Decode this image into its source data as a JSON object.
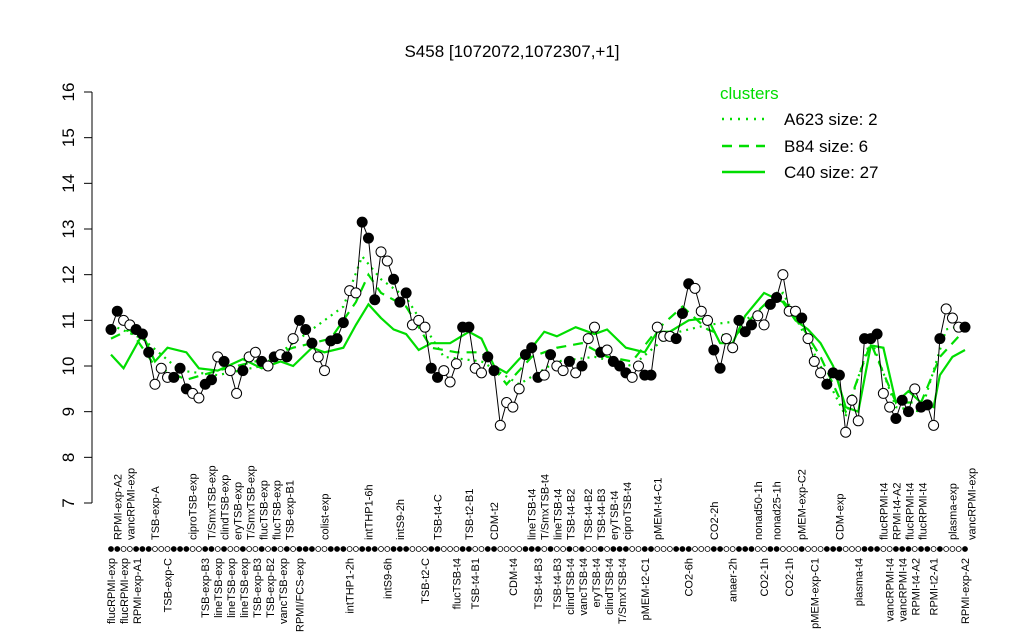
{
  "chart_data": {
    "type": "line",
    "title": "S458 [1072072,1072307,+1]",
    "xlabel": "",
    "ylabel": "",
    "ylim": [
      7,
      16
    ],
    "yticks": [
      7,
      8,
      9,
      10,
      11,
      12,
      13,
      14,
      15,
      16
    ],
    "xlim": [
      1,
      137
    ],
    "grid": false,
    "legend": {
      "title": "clusters",
      "placement": "top-right",
      "color": "#00dd00",
      "entries": [
        {
          "label": "A623 size: 2",
          "style": "dotted"
        },
        {
          "label": "B84 size: 6",
          "style": "dashed"
        },
        {
          "label": "C40 size: 27",
          "style": "solid"
        }
      ]
    },
    "points": {
      "values": [
        10.8,
        11.2,
        11.0,
        10.9,
        10.8,
        10.7,
        10.3,
        9.6,
        9.95,
        9.75,
        9.75,
        9.95,
        9.5,
        9.4,
        9.3,
        9.6,
        9.7,
        10.2,
        10.1,
        9.9,
        9.4,
        9.9,
        10.2,
        10.3,
        10.1,
        10.0,
        10.2,
        10.25,
        10.2,
        10.6,
        11.0,
        10.8,
        10.5,
        10.2,
        9.9,
        10.55,
        10.6,
        10.95,
        11.65,
        11.6,
        13.15,
        12.8,
        11.45,
        12.5,
        12.3,
        11.9,
        11.4,
        11.6,
        10.9,
        11.0,
        10.85,
        9.95,
        9.75,
        9.9,
        9.65,
        10.05,
        10.85,
        10.85,
        9.95,
        9.85,
        10.2,
        9.9,
        8.7,
        9.2,
        9.1,
        9.5,
        10.25,
        10.4,
        9.75,
        9.8,
        10.25,
        10.0,
        9.9,
        10.1,
        9.85,
        10.0,
        10.6,
        10.85,
        10.3,
        10.35,
        10.1,
        10.0,
        9.85,
        9.75,
        10.0,
        9.8,
        9.8,
        10.85,
        10.65,
        10.65,
        10.6,
        11.15,
        11.8,
        11.7,
        11.2,
        11.0,
        10.35,
        9.95,
        10.6,
        10.4,
        11.0,
        10.75,
        10.9,
        11.1,
        10.9,
        11.35,
        11.5,
        12.0,
        11.2,
        11.2,
        11.05,
        10.6,
        10.1,
        9.85,
        9.6,
        9.85,
        9.8,
        8.55,
        9.25,
        8.8,
        10.6,
        10.6,
        10.7,
        9.4,
        9.1,
        8.85,
        9.25,
        9.0,
        9.5,
        9.1,
        9.15,
        8.7,
        10.6,
        11.25,
        11.05,
        10.85,
        10.85
      ],
      "filled": [
        1,
        1,
        0,
        0,
        1,
        1,
        1,
        0,
        0,
        0,
        1,
        1,
        1,
        0,
        0,
        1,
        1,
        0,
        1,
        0,
        0,
        1,
        0,
        0,
        1,
        0,
        1,
        0,
        1,
        0,
        1,
        1,
        1,
        0,
        0,
        1,
        1,
        1,
        0,
        0,
        1,
        1,
        1,
        0,
        0,
        1,
        1,
        1,
        0,
        0,
        0,
        1,
        1,
        0,
        0,
        0,
        1,
        1,
        0,
        0,
        1,
        1,
        0,
        0,
        0,
        0,
        1,
        1,
        1,
        0,
        1,
        0,
        0,
        1,
        0,
        1,
        0,
        0,
        1,
        0,
        1,
        1,
        1,
        0,
        0,
        1,
        1,
        0,
        0,
        0,
        1,
        1,
        1,
        0,
        0,
        0,
        1,
        1,
        0,
        0,
        1,
        1,
        1,
        0,
        0,
        1,
        1,
        0,
        0,
        0,
        1,
        0,
        0,
        0,
        1,
        1,
        1,
        0,
        0,
        0,
        1,
        1,
        1,
        0,
        0,
        1,
        1,
        1,
        0,
        1,
        1,
        0,
        1,
        0,
        0,
        0,
        1
      ]
    },
    "series": [
      {
        "name": "C40 size: 27",
        "style": "solid",
        "x": [
          1,
          3,
          6,
          8,
          10,
          13,
          15,
          18,
          22,
          25,
          28,
          30,
          33,
          35,
          38,
          40,
          42,
          44,
          46,
          48,
          50,
          52,
          55,
          58,
          60,
          62,
          64,
          66,
          68,
          70,
          72,
          75,
          78,
          80,
          83,
          86,
          88,
          90,
          93,
          96,
          98,
          100,
          102,
          105,
          108,
          110,
          112,
          114,
          116,
          118,
          120,
          122,
          124,
          126,
          128,
          130,
          132,
          133,
          135,
          137
        ],
        "y": [
          10.25,
          9.95,
          10.7,
          10.1,
          10.4,
          10.3,
          9.95,
          9.9,
          10.15,
          9.95,
          10.1,
          10.0,
          10.4,
          10.3,
          10.4,
          10.9,
          11.35,
          11.05,
          10.8,
          10.7,
          10.35,
          10.5,
          10.5,
          10.75,
          10.6,
          10.0,
          9.85,
          10.15,
          10.4,
          10.75,
          10.65,
          10.85,
          10.7,
          10.8,
          10.4,
          10.3,
          10.75,
          10.75,
          11.0,
          11.05,
          10.5,
          10.5,
          11.1,
          11.6,
          11.4,
          11.0,
          10.8,
          10.5,
          10.0,
          9.1,
          9.0,
          10.45,
          10.4,
          9.2,
          9.45,
          9.2,
          9.1,
          9.8,
          10.2,
          10.35
        ]
      },
      {
        "name": "B84 size: 6",
        "style": "dashed",
        "x": [
          1,
          4,
          8,
          13,
          18,
          24,
          30,
          36,
          40,
          42,
          44,
          48,
          52,
          56,
          60,
          64,
          68,
          72,
          76,
          80,
          84,
          88,
          92,
          96,
          100,
          104,
          107,
          110,
          114,
          118,
          122,
          126,
          130,
          133,
          137
        ],
        "y": [
          10.6,
          10.8,
          10.0,
          9.7,
          9.9,
          10.1,
          10.4,
          10.6,
          11.4,
          12.0,
          11.6,
          11.3,
          10.4,
          10.3,
          10.3,
          9.6,
          10.2,
          10.4,
          10.5,
          10.2,
          10.1,
          10.8,
          11.3,
          10.8,
          10.6,
          11.2,
          11.6,
          11.1,
          10.2,
          9.0,
          10.5,
          9.2,
          9.2,
          10.2,
          10.8
        ]
      },
      {
        "name": "A623 size: 2",
        "style": "dotted",
        "x": [
          1,
          6,
          12,
          18,
          25,
          32,
          38,
          41,
          44,
          48,
          54,
          60,
          66,
          72,
          78,
          84,
          90,
          96,
          102,
          108,
          114,
          118,
          122,
          126,
          130,
          134,
          137
        ],
        "y": [
          10.9,
          10.6,
          9.9,
          9.8,
          10.0,
          10.7,
          11.3,
          12.4,
          11.9,
          11.5,
          10.2,
          10.1,
          9.6,
          10.1,
          10.2,
          10.0,
          10.7,
          10.9,
          11.0,
          11.6,
          10.0,
          8.9,
          10.6,
          9.1,
          9.0,
          10.8,
          10.9
        ]
      }
    ],
    "xlabels_top": [
      {
        "x": 2,
        "label": "RPMI-exp-A2"
      },
      {
        "x": 3,
        "label": "vancRPMI-exp"
      },
      {
        "x": 8,
        "label": "TSB-exp-A"
      },
      {
        "x": 14,
        "label": "ciproTSB-exp"
      },
      {
        "x": 17,
        "label": "T/SmxTSB-exp"
      },
      {
        "x": 18,
        "label": "clindTSB-exp"
      },
      {
        "x": 20,
        "label": "eryTSB-exp"
      },
      {
        "x": 22,
        "label": "T/SmxTSB-exp"
      },
      {
        "x": 24,
        "label": "flucTSB-exp"
      },
      {
        "x": 26,
        "label": "flucTSB-exp"
      },
      {
        "x": 29,
        "label": "TSB-exp-B1"
      },
      {
        "x": 35,
        "label": "colist-exp"
      },
      {
        "x": 42,
        "label": "intTHP1-6h"
      },
      {
        "x": 47,
        "label": "intS9-2h"
      },
      {
        "x": 53,
        "label": "TSB-t4-C"
      },
      {
        "x": 58,
        "label": "TSB-t2-B1"
      },
      {
        "x": 62,
        "label": "CDM-t2"
      },
      {
        "x": 68,
        "label": "lineTSB-t4"
      },
      {
        "x": 70,
        "label": "T/SmxTSB-t4"
      },
      {
        "x": 72,
        "label": "lineTSB-t4"
      },
      {
        "x": 74,
        "label": "TSB-t4-B2"
      },
      {
        "x": 77,
        "label": "TSB-t4-B2"
      },
      {
        "x": 79,
        "label": "TSB-t4-B3"
      },
      {
        "x": 81,
        "label": "eryTSB-t4"
      },
      {
        "x": 83,
        "label": "ciproTSB-t4"
      },
      {
        "x": 88,
        "label": "pMEM-t4-C1"
      },
      {
        "x": 97,
        "label": "CO2-2h"
      },
      {
        "x": 104,
        "label": "nonad50-1h"
      },
      {
        "x": 107,
        "label": "nonad25-1h"
      },
      {
        "x": 111,
        "label": "pMEM-exp-C2"
      },
      {
        "x": 117,
        "label": "CDM-exp"
      },
      {
        "x": 124,
        "label": "flucRPMI-t4"
      },
      {
        "x": 125,
        "label": "RPMI-t4-A2"
      },
      {
        "x": 128,
        "label": "flucRPMI-t4"
      },
      {
        "x": 130,
        "label": "flucRPMI-t4"
      },
      {
        "x": 135,
        "label": "plasma-exp"
      },
      {
        "x": 138,
        "label": "vancRPMI-exp"
      }
    ],
    "xlabels_bottom": [
      {
        "x": 1,
        "label": "flucRPMI-exp"
      },
      {
        "x": 3,
        "label": "flucRPMI-exp"
      },
      {
        "x": 5,
        "label": "RPMI-exp-A1"
      },
      {
        "x": 10,
        "label": "TSB-exp-C"
      },
      {
        "x": 16,
        "label": "TSB-exp-B3"
      },
      {
        "x": 18,
        "label": "lineTSB-exp"
      },
      {
        "x": 20,
        "label": "lineTSB-exp"
      },
      {
        "x": 21,
        "label": "lineTSB-exp"
      },
      {
        "x": 22,
        "label": "TSB-exp-B3"
      },
      {
        "x": 23,
        "label": "TSB-exp-B2"
      },
      {
        "x": 25,
        "label": "vancTSB-exp"
      },
      {
        "x": 31,
        "label": "RPMI/FCS-exp"
      },
      {
        "x": 39,
        "label": "intTHP1-2h"
      },
      {
        "x": 45,
        "label": "intS9-6h"
      },
      {
        "x": 51,
        "label": "TSB-t2-C"
      },
      {
        "x": 56,
        "label": "flucTSB-t4"
      },
      {
        "x": 59,
        "label": "TSB-t4-B1"
      },
      {
        "x": 65,
        "label": "CDM-t4"
      },
      {
        "x": 69,
        "label": "TSB-t4-B3"
      },
      {
        "x": 72,
        "label": "TSB-t4-B3"
      },
      {
        "x": 74,
        "label": "clindTSB-t4"
      },
      {
        "x": 76,
        "label": "vancTSB-t4"
      },
      {
        "x": 78,
        "label": "eryTSB-t4"
      },
      {
        "x": 80,
        "label": "clindTSB-t4"
      },
      {
        "x": 82,
        "label": "T/SmxTSB-t4"
      },
      {
        "x": 86,
        "label": "pMEM-t2-C1"
      },
      {
        "x": 93,
        "label": "CO2-6h"
      },
      {
        "x": 100,
        "label": "anaer-2h"
      },
      {
        "x": 105,
        "label": "CO2-1h"
      },
      {
        "x": 109,
        "label": "CO2-1h"
      },
      {
        "x": 113,
        "label": "pMEM-exp-C1"
      },
      {
        "x": 120,
        "label": "plasma-t4"
      },
      {
        "x": 125,
        "label": "vancRPMI-t4"
      },
      {
        "x": 126,
        "label": "vancRPMI-t4"
      },
      {
        "x": 129,
        "label": "RPMI-t4-A2"
      },
      {
        "x": 132,
        "label": "RPMI-t2-A1"
      },
      {
        "x": 137,
        "label": "RPMI-exp-A2"
      }
    ]
  }
}
